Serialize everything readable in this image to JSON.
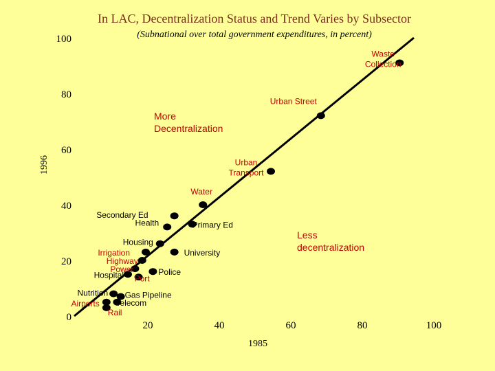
{
  "chart_data": {
    "type": "scatter",
    "title": "In LAC, Decentralization Status and Trend Varies by Subsector",
    "subtitle": "(Subnational over total government expenditures, in percent)",
    "xlabel": "1985",
    "ylabel": "1996",
    "xlim": [
      0,
      100
    ],
    "ylim": [
      0,
      100
    ],
    "x_ticks": [
      "20",
      "40",
      "60",
      "80",
      "100"
    ],
    "y_ticks": [
      "0",
      "20",
      "40",
      "60",
      "80",
      "100"
    ],
    "grid": false,
    "legend": "none",
    "trend_line": {
      "x": [
        0,
        95
      ],
      "y": [
        0,
        100
      ]
    },
    "points": [
      {
        "label": "Waste Collection",
        "label_color": "#c00000",
        "x": 91,
        "y": 91
      },
      {
        "label": "Urban Street",
        "label_color": "#c00000",
        "x": 69,
        "y": 72
      },
      {
        "label": "Urban Transport",
        "label_color": "#c00000",
        "x": 55,
        "y": 52
      },
      {
        "label": "Water",
        "label_color": "#c00000",
        "x": 36,
        "y": 40
      },
      {
        "label": "Secondary Ed",
        "label_color": "#000000",
        "x": 28,
        "y": 36
      },
      {
        "label": "Health",
        "label_color": "#000000",
        "x": 26,
        "y": 32
      },
      {
        "label": "Housing",
        "label_color": "#000000",
        "x": 24,
        "y": 26
      },
      {
        "label": "Primary Ed",
        "label_color": "#000000",
        "x": 33,
        "y": 33
      },
      {
        "label": "Irrigation",
        "label_color": "#c00000",
        "x": 20,
        "y": 23
      },
      {
        "label": "University",
        "label_color": "#000000",
        "x": 28,
        "y": 23
      },
      {
        "label": "Highway",
        "label_color": "#c00000",
        "x": 19,
        "y": 20
      },
      {
        "label": "Power",
        "label_color": "#c00000",
        "x": 17,
        "y": 17
      },
      {
        "label": "Hospital",
        "label_color": "#000000",
        "x": 15,
        "y": 15
      },
      {
        "label": "Police",
        "label_color": "#000000",
        "x": 22,
        "y": 16
      },
      {
        "label": "Port",
        "label_color": "#c00000",
        "x": 18,
        "y": 14
      },
      {
        "label": "Nutrition",
        "label_color": "#000000",
        "x": 11,
        "y": 8
      },
      {
        "label": "Gas Pipeline",
        "label_color": "#000000",
        "x": 13,
        "y": 7
      },
      {
        "label": "Airports",
        "label_color": "#c00000",
        "x": 9,
        "y": 5
      },
      {
        "label": "Telecom",
        "label_color": "#000000",
        "x": 12,
        "y": 5
      },
      {
        "label": "Rail",
        "label_color": "#c00000",
        "x": 9,
        "y": 3
      }
    ],
    "annotations": [
      {
        "text": "More Decentralization",
        "lines": [
          "More",
          "Decentralization"
        ],
        "color": "#c00000"
      },
      {
        "text": "Less decentralization",
        "lines": [
          "Less",
          "decentralization"
        ],
        "color": "#c00000"
      }
    ]
  }
}
